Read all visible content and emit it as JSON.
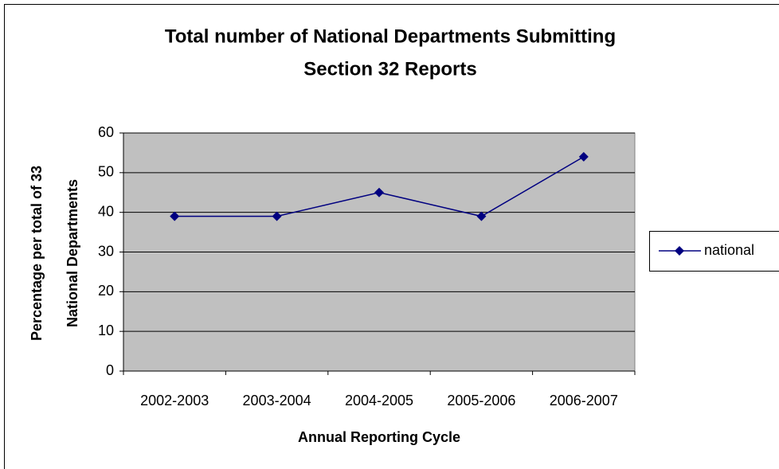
{
  "chart_data": {
    "type": "line",
    "title": [
      "Total number of National Departments Submitting",
      "Section 32 Reports"
    ],
    "y_label": [
      "Percentage per total of 33",
      "National Departments"
    ],
    "x_label": "Annual Reporting Cycle",
    "categories": [
      "2002-2003",
      "2003-2004",
      "2004-2005",
      "2005-2006",
      "2006-2007"
    ],
    "series": [
      {
        "name": "national",
        "color": "#000080",
        "values": [
          39,
          39,
          45,
          39,
          54
        ]
      }
    ],
    "ylim": [
      0,
      60
    ],
    "yticks": [
      0,
      10,
      20,
      30,
      40,
      50,
      60
    ],
    "grid": true,
    "legend": "right"
  }
}
